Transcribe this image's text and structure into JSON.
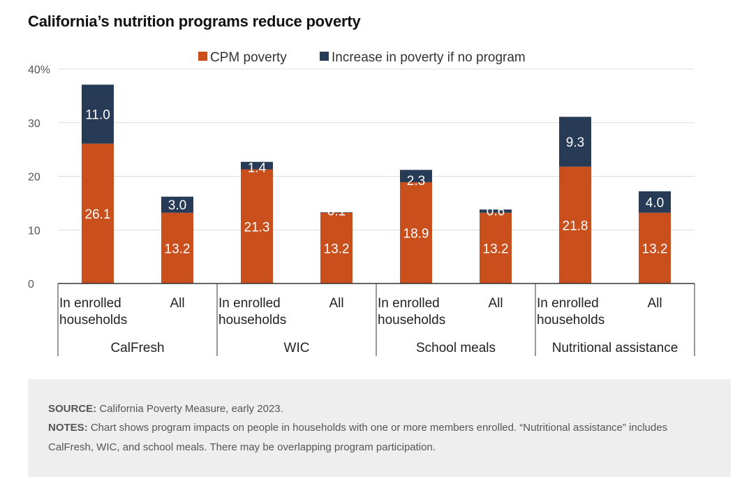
{
  "title": "California’s nutrition programs reduce poverty",
  "legend": [
    {
      "name": "CPM poverty",
      "color": "#c9501c"
    },
    {
      "name": "Increase in poverty if no program",
      "color": "#273a56"
    }
  ],
  "chart_data": {
    "type": "bar",
    "stacked": true,
    "title": "California’s nutrition programs reduce poverty",
    "ylim": [
      0,
      40
    ],
    "yticks": [
      "0",
      "10",
      "20",
      "30",
      "40%"
    ],
    "ytick_values": [
      0,
      10,
      20,
      30,
      40
    ],
    "grid": true,
    "legend_position": "top",
    "groups": [
      "CalFresh",
      "WIC",
      "School meals",
      "Nutritional assistance"
    ],
    "categories": [
      [
        "In enrolled",
        "households"
      ],
      [
        "All"
      ],
      [
        "In enrolled",
        "households"
      ],
      [
        "All"
      ],
      [
        "In enrolled",
        "households"
      ],
      [
        "All"
      ],
      [
        "In enrolled",
        "households"
      ],
      [
        "All"
      ]
    ],
    "series": [
      {
        "name": "CPM poverty",
        "color": "#c9501c",
        "values": [
          26.1,
          13.2,
          21.3,
          13.2,
          18.9,
          13.2,
          21.8,
          13.2
        ]
      },
      {
        "name": "Increase in poverty if no program",
        "color": "#273a56",
        "values": [
          11.0,
          3.0,
          1.4,
          0.1,
          2.3,
          0.6,
          9.3,
          4.0
        ]
      }
    ],
    "data_labels": [
      [
        "26.1",
        "13.2",
        "21.3",
        "13.2",
        "18.9",
        "13.2",
        "21.8",
        "13.2"
      ],
      [
        "11.0",
        "3.0",
        "1.4",
        "0.1",
        "2.3",
        "0.6",
        "9.3",
        "4.0"
      ]
    ]
  },
  "notes": {
    "source_label": "SOURCE:",
    "source_text": " California Poverty Measure, early 2023.",
    "notes_label": "NOTES:",
    "notes_text": " Chart shows program impacts on people in households with one or more members enrolled. “Nutritional assistance” includes CalFresh, WIC, and school meals. There may be overlapping program participation."
  }
}
